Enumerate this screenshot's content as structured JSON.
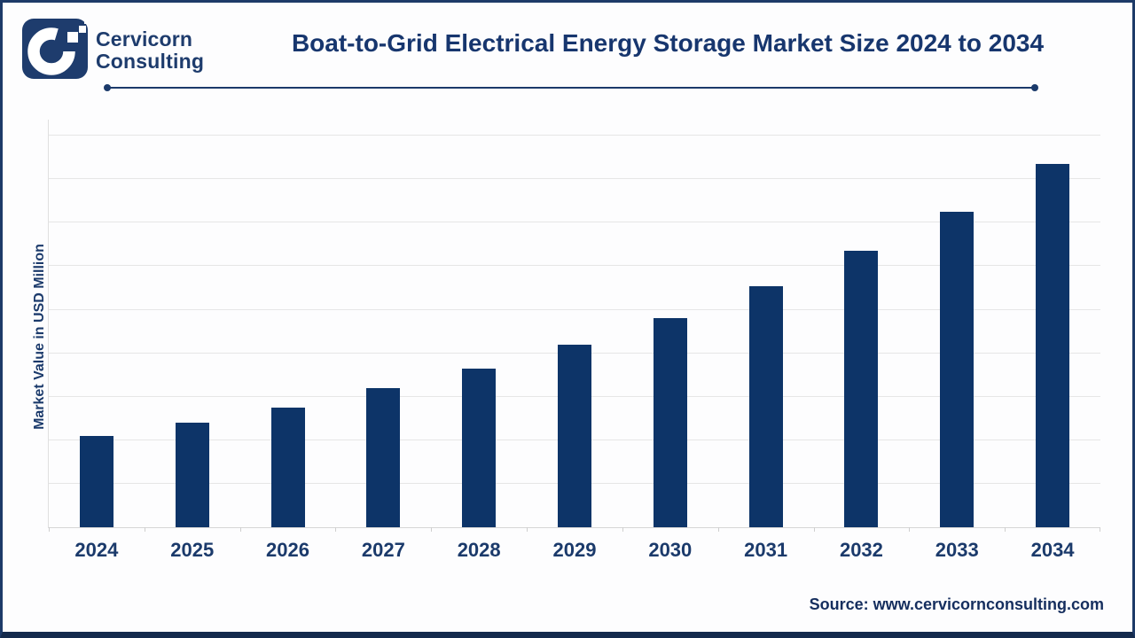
{
  "header": {
    "brand_line1": "Cervicorn",
    "brand_line2": "Consulting",
    "title": "Boat-to-Grid Electrical Energy Storage Market Size 2024 to 2034"
  },
  "chart_data": {
    "type": "bar",
    "title": "Boat-to-Grid Electrical Energy Storage Market Size 2024 to 2034",
    "categories": [
      "2024",
      "2025",
      "2026",
      "2027",
      "2028",
      "2029",
      "2030",
      "2031",
      "2032",
      "2033",
      "2034"
    ],
    "values": [
      2.1,
      2.4,
      2.75,
      3.2,
      3.65,
      4.2,
      4.8,
      5.55,
      6.35,
      7.25,
      8.35
    ],
    "xlabel": "",
    "ylabel": "Market Value in USD Million",
    "ylim": [
      0,
      9.4
    ],
    "gridline_interval": 1,
    "grid": true,
    "legend": false,
    "value_unit": "gridline units (no numeric y-axis tick labels shown in image)",
    "bar_color": "#0d3468"
  },
  "footer": {
    "source": "Source: www.cervicornconsulting.com"
  },
  "colors": {
    "navy_bar": "#0d3468",
    "navy_text": "#17366e",
    "logo_tile": "#1e3c6d",
    "gridline": "#e6e6e6",
    "axis_line": "#d6d6d6",
    "frame_border": "#1d3a68",
    "bottom_border": "#142a4c",
    "background": "#fdfdfe"
  }
}
